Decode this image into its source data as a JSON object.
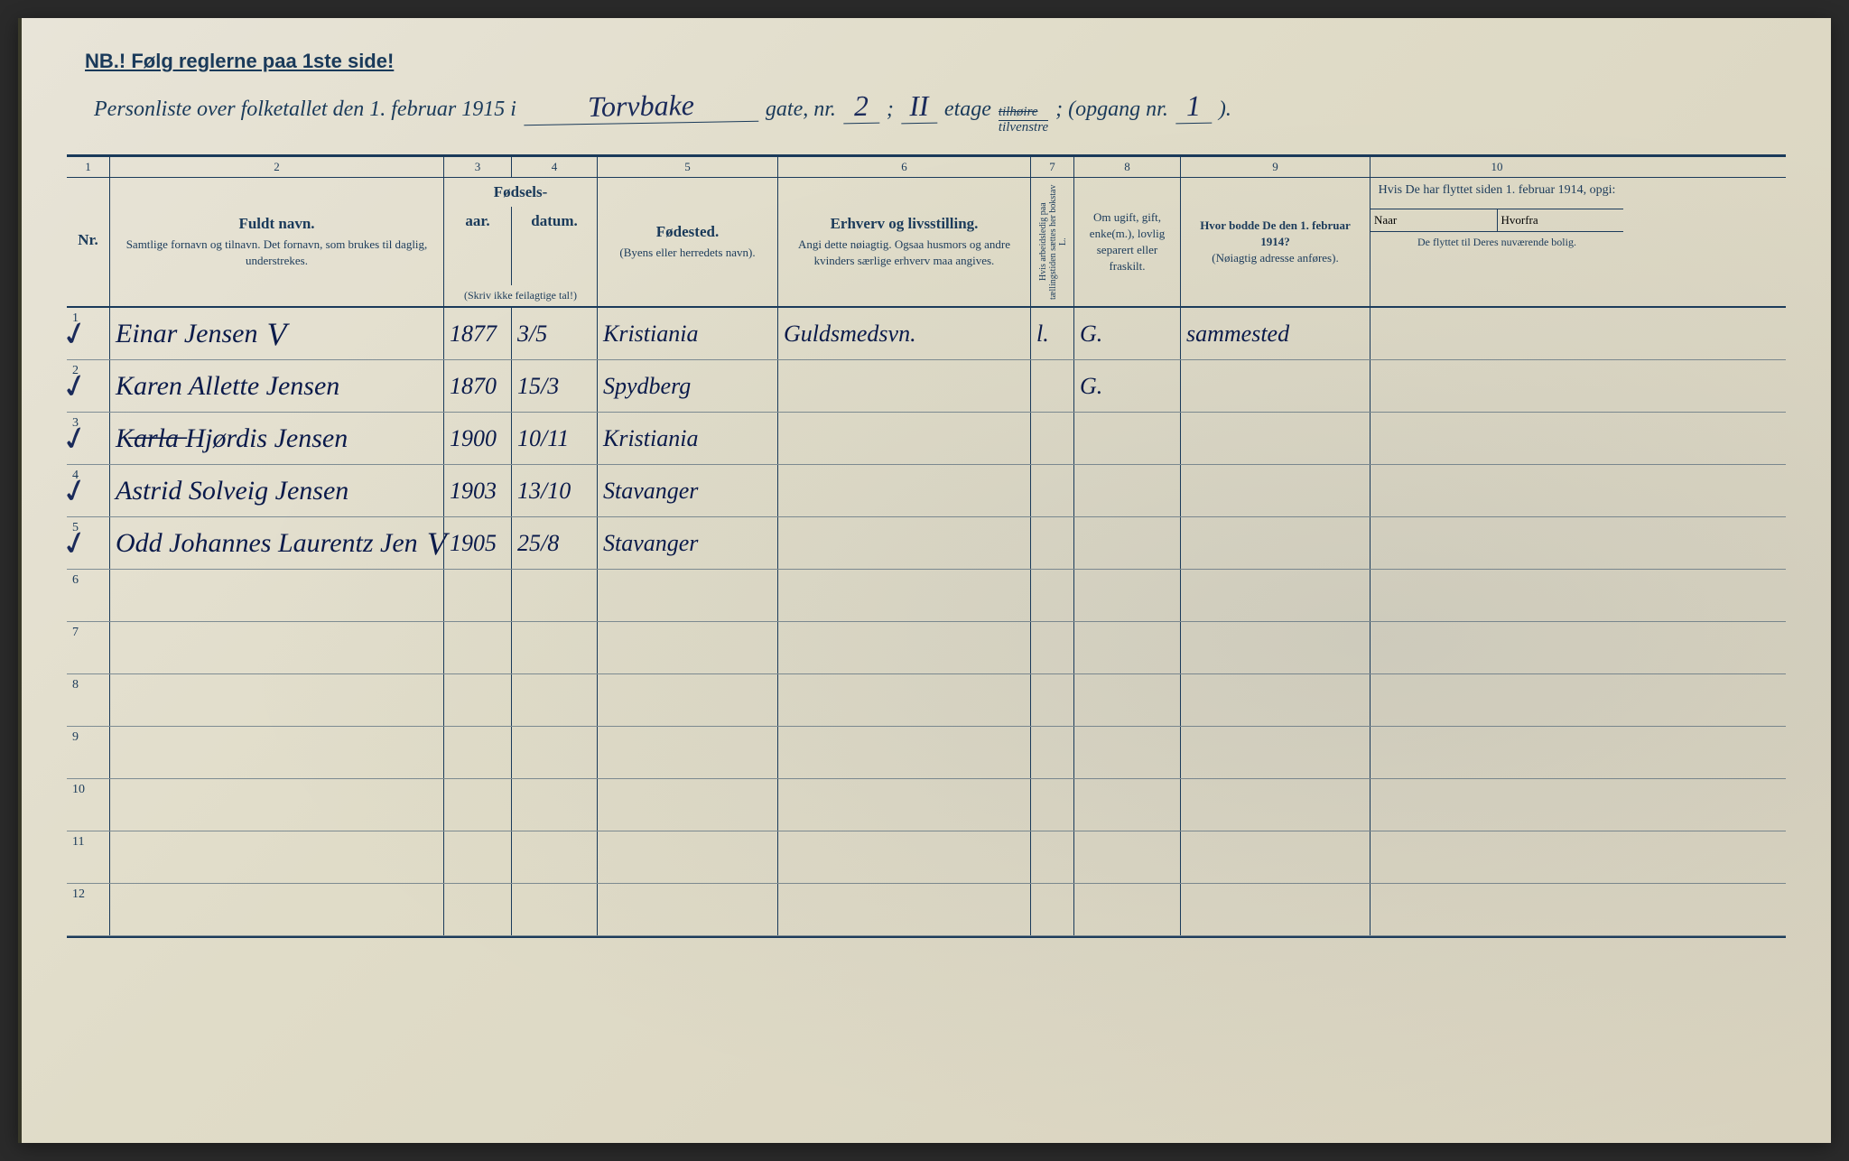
{
  "header": {
    "nb_text": "NB.! Følg reglerne paa 1ste side!",
    "title_prefix": "Personliste over folketallet den 1. februar 1915 i",
    "street_name": "Torvbake",
    "gate_label": "gate, nr.",
    "gate_nr": "2",
    "etage_label": "etage",
    "etage_val": "II",
    "tilhoire": "tilhøire",
    "tilvenstre": "tilvenstre",
    "opgang_label": "; (opgang nr.",
    "opgang_nr": "1",
    "closing": ")."
  },
  "columns": {
    "nums": [
      "1",
      "2",
      "3",
      "4",
      "5",
      "6",
      "7",
      "8",
      "9",
      "10"
    ],
    "c1": "Nr.",
    "c2_main": "Fuldt navn.",
    "c2_sub": "Samtlige fornavn og tilnavn. Det fornavn, som brukes til daglig, understrekes.",
    "c34_main": "Fødsels-",
    "c3": "aar.",
    "c4": "datum.",
    "c34_tiny": "(Skriv ikke feilagtige tal!)",
    "c5_main": "Fødested.",
    "c5_sub": "(Byens eller herredets navn).",
    "c6_main": "Erhverv og livsstilling.",
    "c6_sub": "Angi dette nøiagtig. Ogsaa husmors og andre kvinders særlige erhverv maa angives.",
    "c7": "Hvis arbeidsledig paa tællingstiden sættes her bokstav L.",
    "c8": "Om ugift, gift, enke(m.), lovlig separert eller fraskilt.",
    "c9_main": "Hvor bodde De den 1. februar 1914?",
    "c9_sub": "(Nøiagtig adresse anføres).",
    "c10_main": "Hvis De har flyttet siden 1. februar 1914, opgi:",
    "c10_a": "Naar",
    "c10_b": "Hvorfra",
    "c10_sub": "De flyttet til Deres nuværende bolig."
  },
  "rows": [
    {
      "nr": "1",
      "check": true,
      "name": "Einar Jensen",
      "checkV": true,
      "year": "1877",
      "date": "3/5",
      "place": "Kristiania",
      "occ": "Guldsmedsvn.",
      "col7": "l.",
      "status": "G.",
      "prev": "sammested"
    },
    {
      "nr": "2",
      "check": true,
      "name": "Karen Allette Jensen",
      "year": "1870",
      "date": "15/3",
      "place": "Spydberg",
      "occ": "",
      "col7": "",
      "status": "G.",
      "prev": ""
    },
    {
      "nr": "3",
      "check": true,
      "name": "K̶a̶r̶l̶a̶ Hjørdis Jensen",
      "year": "1900",
      "date": "10/11",
      "place": "Kristiania",
      "occ": "",
      "col7": "",
      "status": "",
      "prev": ""
    },
    {
      "nr": "4",
      "check": true,
      "name": "Astrid Solveig Jensen",
      "year": "1903",
      "date": "13/10",
      "place": "Stavanger",
      "occ": "",
      "col7": "",
      "status": "",
      "prev": ""
    },
    {
      "nr": "5",
      "check": true,
      "name": "Odd Johannes Laurentz Jen",
      "checkV": true,
      "year": "1905",
      "date": "25/8",
      "place": "Stavanger",
      "occ": "",
      "col7": "",
      "status": "",
      "prev": ""
    },
    {
      "nr": "6"
    },
    {
      "nr": "7"
    },
    {
      "nr": "8"
    },
    {
      "nr": "9"
    },
    {
      "nr": "10"
    },
    {
      "nr": "11"
    },
    {
      "nr": "12"
    }
  ],
  "style": {
    "ink_color": "#1a2a5a",
    "print_color": "#1a3a5a",
    "paper_bg": "#e0dcc8"
  }
}
